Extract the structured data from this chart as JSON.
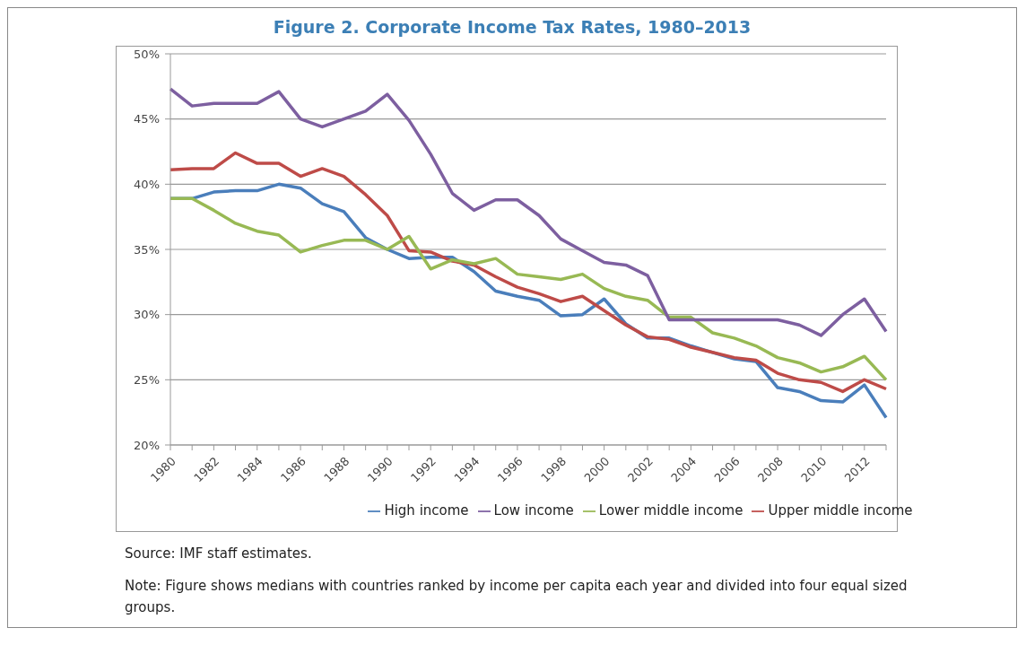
{
  "chart_data": {
    "type": "line",
    "title": "Figure 2. Corporate Income Tax Rates, 1980–2013",
    "categories": [
      "1980",
      null,
      "1982",
      null,
      "1984",
      null,
      "1986",
      null,
      "1988",
      null,
      "1990",
      null,
      "1992",
      null,
      "1994",
      null,
      "1996",
      null,
      "1998",
      null,
      "2000",
      null,
      "2002",
      null,
      "2004",
      null,
      "2006",
      null,
      "2008",
      null,
      "2010",
      null,
      "2012",
      null
    ],
    "series": [
      {
        "name": "High income",
        "color": "#4a7ebb",
        "values": [
          38.9,
          38.9,
          39.4,
          39.5,
          39.5,
          40.0,
          39.7,
          38.5,
          37.9,
          35.9,
          35.0,
          34.3,
          34.4,
          34.4,
          33.3,
          31.8,
          31.4,
          31.1,
          29.9,
          30.0,
          31.2,
          29.3,
          28.2,
          28.2,
          27.6,
          27.1,
          26.6,
          26.4,
          24.4,
          24.1,
          23.4,
          23.3,
          24.6,
          22.1
        ]
      },
      {
        "name": "Upper middle income",
        "color": "#be4b48",
        "values": [
          41.1,
          41.2,
          41.2,
          42.4,
          41.6,
          41.6,
          40.6,
          41.2,
          40.6,
          39.2,
          37.6,
          34.9,
          34.8,
          34.1,
          33.8,
          32.9,
          32.1,
          31.6,
          31.0,
          31.4,
          30.3,
          29.2,
          28.3,
          28.1,
          27.5,
          27.1,
          26.7,
          26.5,
          25.5,
          25.0,
          24.8,
          24.1,
          25.0,
          24.3
        ]
      },
      {
        "name": "Lower middle income",
        "color": "#98b954",
        "values": [
          38.9,
          38.9,
          38.0,
          37.0,
          36.4,
          36.1,
          34.8,
          35.3,
          35.7,
          35.7,
          35.0,
          36.0,
          33.5,
          34.2,
          33.9,
          34.3,
          33.1,
          32.9,
          32.7,
          33.1,
          32.0,
          31.4,
          31.1,
          29.8,
          29.8,
          28.6,
          28.2,
          27.6,
          26.7,
          26.3,
          25.6,
          26.0,
          26.8,
          25.0
        ]
      },
      {
        "name": "Low income",
        "color": "#7d5fa0",
        "values": [
          47.3,
          46.0,
          46.2,
          46.2,
          46.2,
          47.1,
          45.0,
          44.4,
          45.0,
          45.6,
          46.9,
          44.9,
          42.3,
          39.3,
          38.0,
          38.8,
          38.8,
          37.6,
          35.8,
          34.9,
          34.0,
          33.8,
          33.0,
          29.6,
          29.6,
          29.6,
          29.6,
          29.6,
          29.6,
          29.2,
          28.4,
          30.0,
          31.2,
          28.7
        ]
      }
    ],
    "ylim": [
      20,
      50
    ],
    "yticks": [
      {
        "value": 20,
        "label": "20%"
      },
      {
        "value": 25,
        "label": "25%"
      },
      {
        "value": 30,
        "label": "30%"
      },
      {
        "value": 35,
        "label": "35%"
      },
      {
        "value": 40,
        "label": "40%"
      },
      {
        "value": 45,
        "label": "45%"
      },
      {
        "value": 50,
        "label": "50%"
      }
    ],
    "grid": "y",
    "legend": "bottom",
    "marker": "none",
    "line_style": "solid",
    "annotations": [
      "Source: IMF staff estimates.",
      "Note: Figure shows medians with countries ranked by income per capita each year and divided into four equal sized groups."
    ]
  }
}
